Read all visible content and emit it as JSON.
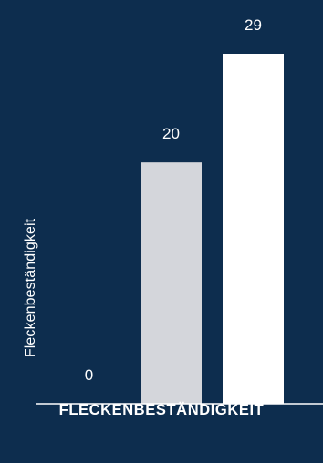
{
  "chart_data": {
    "type": "bar",
    "categories": [
      "",
      "",
      ""
    ],
    "values": [
      0,
      20,
      29
    ],
    "data_labels": [
      "0",
      "20",
      "29"
    ],
    "title": "",
    "xlabel": "FLECKENBESTÄNDIGKEIT",
    "ylabel": "Fleckenbeständigkeit",
    "ylim": [
      0,
      29
    ],
    "grid": false,
    "colors": {
      "background": "#0d2d4e",
      "bars": [
        "#ffffff",
        "#d4d6db",
        "#ffffff"
      ],
      "axis": "#ffffff",
      "text": "#ffffff"
    }
  }
}
